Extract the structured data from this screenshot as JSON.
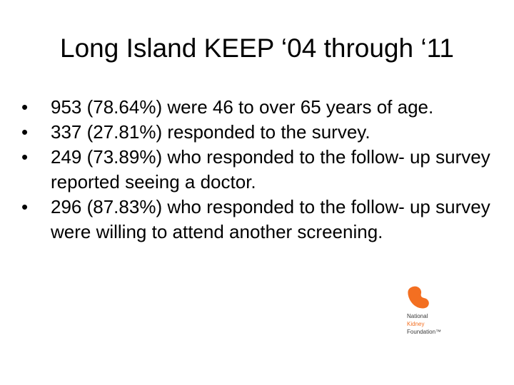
{
  "slide": {
    "title": "Long Island KEEP ‘04 through ‘11",
    "bullet_glyph": "•",
    "bullets": [
      {
        "text": "953 (78.64%) were 46 to over 65 years of age."
      },
      {
        "text": "337 (27.81%) responded to the survey."
      },
      {
        "text": "249 (73.89%) who responded to the follow- up survey reported seeing a doctor."
      },
      {
        "text": "296 (87.83%) who responded to the follow- up survey were willing to attend another screening."
      }
    ]
  },
  "logo": {
    "icon": "kidney-icon",
    "line1": "National",
    "line2": "Kidney",
    "line3": "Foundation™",
    "color": "#f36f21"
  }
}
